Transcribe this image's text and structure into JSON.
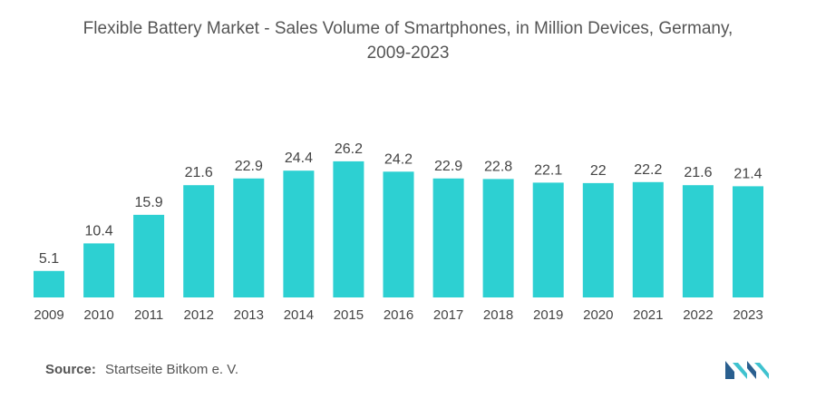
{
  "title_line1": "Flexible Battery Market - Sales Volume of Smartphones, in Million Devices, Germany,",
  "title_line2": "2009-2023",
  "source_label": "Source:",
  "source_text": "Startseite Bitkom e. V.",
  "colors": {
    "bar": "#2dd0d2",
    "logo_dark": "#2a5f8f",
    "logo_light": "#3fc2cf"
  },
  "chart_data": {
    "type": "bar",
    "title": "Flexible Battery Market - Sales Volume of Smartphones, in Million Devices, Germany, 2009-2023",
    "categories": [
      "2009",
      "2010",
      "2011",
      "2012",
      "2013",
      "2014",
      "2015",
      "2016",
      "2017",
      "2018",
      "2019",
      "2020",
      "2021",
      "2022",
      "2023"
    ],
    "values": [
      5.1,
      10.4,
      15.9,
      21.6,
      22.9,
      24.4,
      26.2,
      24.2,
      22.9,
      22.8,
      22.1,
      22,
      22.2,
      21.6,
      21.4
    ],
    "value_labels": [
      "5.1",
      "10.4",
      "15.9",
      "21.6",
      "22.9",
      "24.4",
      "26.2",
      "24.2",
      "22.9",
      "22.8",
      "22.1",
      "22",
      "22.2",
      "21.6",
      "21.4"
    ],
    "xlabel": "",
    "ylabel": "",
    "grid": false,
    "legend": "none"
  }
}
